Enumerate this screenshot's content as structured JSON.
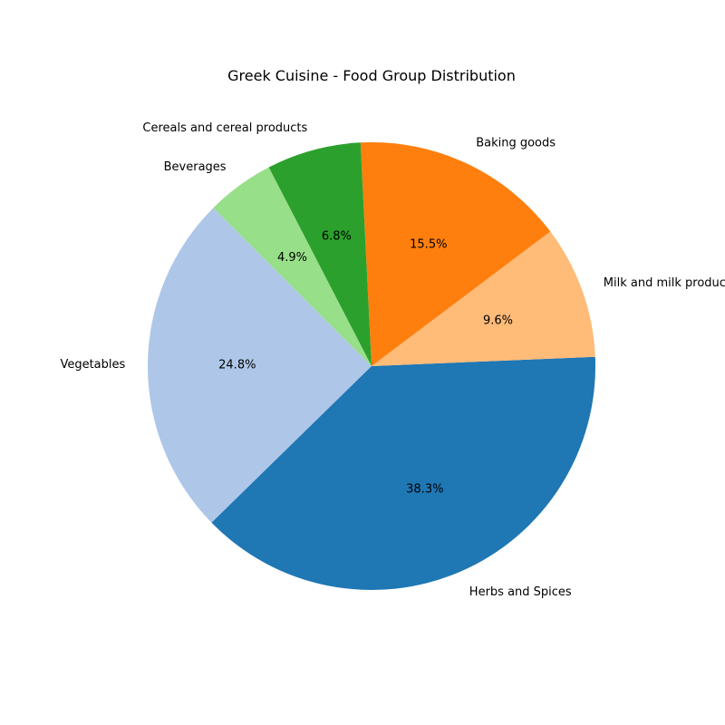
{
  "chart_data": {
    "type": "pie",
    "title": "Greek Cuisine - Food Group Distribution",
    "start_angle_deg": 135,
    "direction": "counterclockwise",
    "slices": [
      {
        "label": "Vegetables",
        "value": 24.8,
        "pct_label": "24.8%",
        "color": "#aec7e8"
      },
      {
        "label": "Herbs and Spices",
        "value": 38.3,
        "pct_label": "38.3%",
        "color": "#1f77b4"
      },
      {
        "label": "Milk and milk products",
        "value": 9.6,
        "pct_label": "9.6%",
        "color": "#ffbb78"
      },
      {
        "label": "Baking goods",
        "value": 15.5,
        "pct_label": "15.5%",
        "color": "#ff7f0e"
      },
      {
        "label": "Cereals and cereal products",
        "value": 6.8,
        "pct_label": "6.8%",
        "color": "#2ca02c"
      },
      {
        "label": "Beverages",
        "value": 4.9,
        "pct_label": "4.9%",
        "color": "#98df8a"
      }
    ]
  }
}
